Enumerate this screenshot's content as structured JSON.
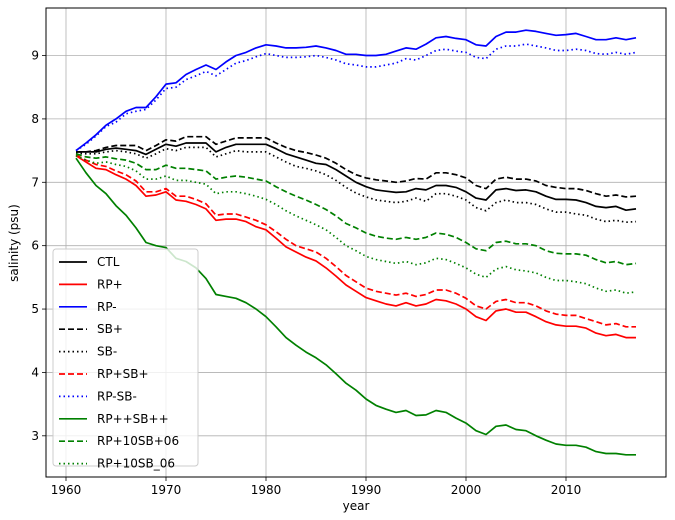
{
  "chart_data": {
    "type": "line",
    "xlabel": "year",
    "ylabel": "salinity (psu)",
    "xlim": [
      1958,
      2020
    ],
    "ylim": [
      2.35,
      9.75
    ],
    "xticks": [
      1960,
      1970,
      1980,
      1990,
      2000,
      2010
    ],
    "yticks": [
      3,
      4,
      5,
      6,
      7,
      8,
      9
    ],
    "grid": true,
    "legend_position": "lower-left",
    "x": [
      1961,
      1962,
      1963,
      1964,
      1965,
      1966,
      1967,
      1968,
      1969,
      1970,
      1971,
      1972,
      1973,
      1974,
      1975,
      1976,
      1977,
      1978,
      1979,
      1980,
      1981,
      1982,
      1983,
      1984,
      1985,
      1986,
      1987,
      1988,
      1989,
      1990,
      1991,
      1992,
      1993,
      1994,
      1995,
      1996,
      1997,
      1998,
      1999,
      2000,
      2001,
      2002,
      2003,
      2004,
      2005,
      2006,
      2007,
      2008,
      2009,
      2010,
      2011,
      2012,
      2013,
      2014,
      2015,
      2016,
      2017
    ],
    "series": [
      {
        "name": "CTL",
        "color": "#000000",
        "dash": "solid",
        "values": [
          7.48,
          7.48,
          7.48,
          7.52,
          7.54,
          7.52,
          7.5,
          7.44,
          7.52,
          7.6,
          7.57,
          7.62,
          7.62,
          7.62,
          7.48,
          7.55,
          7.6,
          7.6,
          7.6,
          7.6,
          7.53,
          7.45,
          7.4,
          7.35,
          7.3,
          7.28,
          7.2,
          7.1,
          7.0,
          6.93,
          6.88,
          6.86,
          6.84,
          6.85,
          6.9,
          6.88,
          6.95,
          6.95,
          6.92,
          6.85,
          6.75,
          6.72,
          6.88,
          6.9,
          6.87,
          6.88,
          6.85,
          6.78,
          6.73,
          6.73,
          6.72,
          6.68,
          6.62,
          6.6,
          6.62,
          6.56,
          6.58
        ]
      },
      {
        "name": "RP+",
        "color": "#ff0000",
        "dash": "solid",
        "values": [
          7.42,
          7.32,
          7.22,
          7.2,
          7.12,
          7.05,
          6.95,
          6.78,
          6.8,
          6.85,
          6.72,
          6.7,
          6.65,
          6.58,
          6.4,
          6.42,
          6.42,
          6.38,
          6.3,
          6.25,
          6.12,
          5.98,
          5.9,
          5.82,
          5.76,
          5.65,
          5.52,
          5.38,
          5.28,
          5.18,
          5.13,
          5.08,
          5.05,
          5.1,
          5.05,
          5.08,
          5.15,
          5.13,
          5.08,
          5.0,
          4.88,
          4.82,
          4.97,
          5.0,
          4.95,
          4.95,
          4.88,
          4.8,
          4.75,
          4.73,
          4.73,
          4.7,
          4.62,
          4.58,
          4.6,
          4.55,
          4.55
        ]
      },
      {
        "name": "RP-",
        "color": "#0000ff",
        "dash": "solid",
        "values": [
          7.5,
          7.62,
          7.75,
          7.9,
          8.0,
          8.12,
          8.18,
          8.18,
          8.35,
          8.55,
          8.57,
          8.7,
          8.78,
          8.85,
          8.78,
          8.9,
          9.0,
          9.05,
          9.12,
          9.17,
          9.15,
          9.12,
          9.12,
          9.13,
          9.15,
          9.12,
          9.08,
          9.02,
          9.02,
          9.0,
          9.0,
          9.02,
          9.07,
          9.12,
          9.1,
          9.18,
          9.28,
          9.3,
          9.27,
          9.25,
          9.17,
          9.15,
          9.3,
          9.37,
          9.37,
          9.4,
          9.38,
          9.35,
          9.32,
          9.33,
          9.35,
          9.3,
          9.25,
          9.25,
          9.28,
          9.25,
          9.28
        ]
      },
      {
        "name": "SB+",
        "color": "#000000",
        "dash": "dashed",
        "values": [
          7.48,
          7.48,
          7.5,
          7.55,
          7.58,
          7.58,
          7.58,
          7.5,
          7.58,
          7.67,
          7.65,
          7.72,
          7.72,
          7.72,
          7.6,
          7.65,
          7.7,
          7.7,
          7.7,
          7.7,
          7.62,
          7.55,
          7.5,
          7.47,
          7.43,
          7.38,
          7.3,
          7.2,
          7.12,
          7.07,
          7.04,
          7.02,
          7.0,
          7.02,
          7.06,
          7.05,
          7.15,
          7.15,
          7.12,
          7.07,
          6.95,
          6.9,
          7.05,
          7.08,
          7.05,
          7.05,
          7.02,
          6.95,
          6.92,
          6.9,
          6.9,
          6.87,
          6.82,
          6.78,
          6.8,
          6.77,
          6.78
        ]
      },
      {
        "name": "SB-",
        "color": "#000000",
        "dash": "dotted",
        "values": [
          7.46,
          7.45,
          7.45,
          7.48,
          7.5,
          7.48,
          7.45,
          7.38,
          7.45,
          7.53,
          7.5,
          7.55,
          7.55,
          7.55,
          7.4,
          7.45,
          7.5,
          7.48,
          7.48,
          7.48,
          7.4,
          7.32,
          7.25,
          7.22,
          7.18,
          7.12,
          7.03,
          6.92,
          6.83,
          6.77,
          6.72,
          6.7,
          6.68,
          6.7,
          6.75,
          6.7,
          6.82,
          6.82,
          6.78,
          6.72,
          6.6,
          6.55,
          6.68,
          6.72,
          6.68,
          6.68,
          6.65,
          6.58,
          6.53,
          6.53,
          6.5,
          6.48,
          6.42,
          6.38,
          6.4,
          6.37,
          6.38
        ]
      },
      {
        "name": "RP+SB+",
        "color": "#ff0000",
        "dash": "dashed",
        "values": [
          7.43,
          7.35,
          7.28,
          7.25,
          7.18,
          7.12,
          7.02,
          6.85,
          6.85,
          6.9,
          6.78,
          6.78,
          6.73,
          6.66,
          6.48,
          6.5,
          6.5,
          6.45,
          6.4,
          6.33,
          6.22,
          6.1,
          6.0,
          5.95,
          5.9,
          5.8,
          5.67,
          5.53,
          5.43,
          5.33,
          5.28,
          5.25,
          5.22,
          5.25,
          5.2,
          5.23,
          5.3,
          5.3,
          5.25,
          5.17,
          5.05,
          5.0,
          5.12,
          5.15,
          5.1,
          5.1,
          5.05,
          4.97,
          4.92,
          4.9,
          4.9,
          4.85,
          4.8,
          4.75,
          4.77,
          4.72,
          4.72
        ]
      },
      {
        "name": "RP-SB-",
        "color": "#0000ff",
        "dash": "dotted",
        "values": [
          7.5,
          7.6,
          7.73,
          7.88,
          7.95,
          8.08,
          8.12,
          8.15,
          8.3,
          8.48,
          8.5,
          8.62,
          8.68,
          8.75,
          8.68,
          8.78,
          8.88,
          8.92,
          8.98,
          9.03,
          9.0,
          8.97,
          8.97,
          8.98,
          9.0,
          8.97,
          8.93,
          8.87,
          8.85,
          8.82,
          8.82,
          8.85,
          8.88,
          8.95,
          8.93,
          9.0,
          9.08,
          9.1,
          9.07,
          9.05,
          8.97,
          8.95,
          9.1,
          9.15,
          9.15,
          9.18,
          9.15,
          9.12,
          9.08,
          9.08,
          9.1,
          9.08,
          9.03,
          9.02,
          9.05,
          9.02,
          9.05
        ]
      },
      {
        "name": "RP++SB++",
        "color": "#008000",
        "dash": "solid",
        "values": [
          7.38,
          7.15,
          6.95,
          6.82,
          6.63,
          6.48,
          6.28,
          6.05,
          6.0,
          5.97,
          5.8,
          5.75,
          5.65,
          5.48,
          5.23,
          5.2,
          5.17,
          5.1,
          5.0,
          4.88,
          4.72,
          4.55,
          4.43,
          4.32,
          4.23,
          4.12,
          3.98,
          3.83,
          3.72,
          3.58,
          3.48,
          3.42,
          3.37,
          3.4,
          3.32,
          3.33,
          3.4,
          3.37,
          3.28,
          3.2,
          3.08,
          3.02,
          3.15,
          3.17,
          3.1,
          3.08,
          3.0,
          2.93,
          2.87,
          2.85,
          2.85,
          2.82,
          2.75,
          2.72,
          2.72,
          2.7,
          2.7
        ]
      },
      {
        "name": "RP+10SB+06",
        "color": "#008000",
        "dash": "dashed",
        "values": [
          7.45,
          7.4,
          7.38,
          7.4,
          7.37,
          7.35,
          7.3,
          7.2,
          7.2,
          7.27,
          7.22,
          7.22,
          7.2,
          7.18,
          7.05,
          7.08,
          7.1,
          7.08,
          7.05,
          7.02,
          6.93,
          6.85,
          6.78,
          6.72,
          6.65,
          6.57,
          6.47,
          6.35,
          6.28,
          6.2,
          6.15,
          6.12,
          6.1,
          6.13,
          6.1,
          6.13,
          6.2,
          6.18,
          6.13,
          6.05,
          5.95,
          5.92,
          6.05,
          6.07,
          6.03,
          6.03,
          6.0,
          5.92,
          5.88,
          5.87,
          5.87,
          5.85,
          5.78,
          5.73,
          5.75,
          5.7,
          5.72
        ]
      },
      {
        "name": "RP+10SB_06",
        "color": "#008000",
        "dash": "dotted",
        "values": [
          7.42,
          7.35,
          7.3,
          7.32,
          7.28,
          7.25,
          7.18,
          7.05,
          7.05,
          7.1,
          7.03,
          7.03,
          7.0,
          6.97,
          6.82,
          6.85,
          6.85,
          6.82,
          6.78,
          6.73,
          6.65,
          6.55,
          6.47,
          6.4,
          6.33,
          6.25,
          6.13,
          6.0,
          5.92,
          5.83,
          5.78,
          5.75,
          5.72,
          5.75,
          5.7,
          5.73,
          5.8,
          5.78,
          5.72,
          5.65,
          5.55,
          5.5,
          5.63,
          5.67,
          5.62,
          5.6,
          5.57,
          5.5,
          5.45,
          5.45,
          5.43,
          5.4,
          5.33,
          5.28,
          5.3,
          5.25,
          5.27
        ]
      }
    ]
  }
}
